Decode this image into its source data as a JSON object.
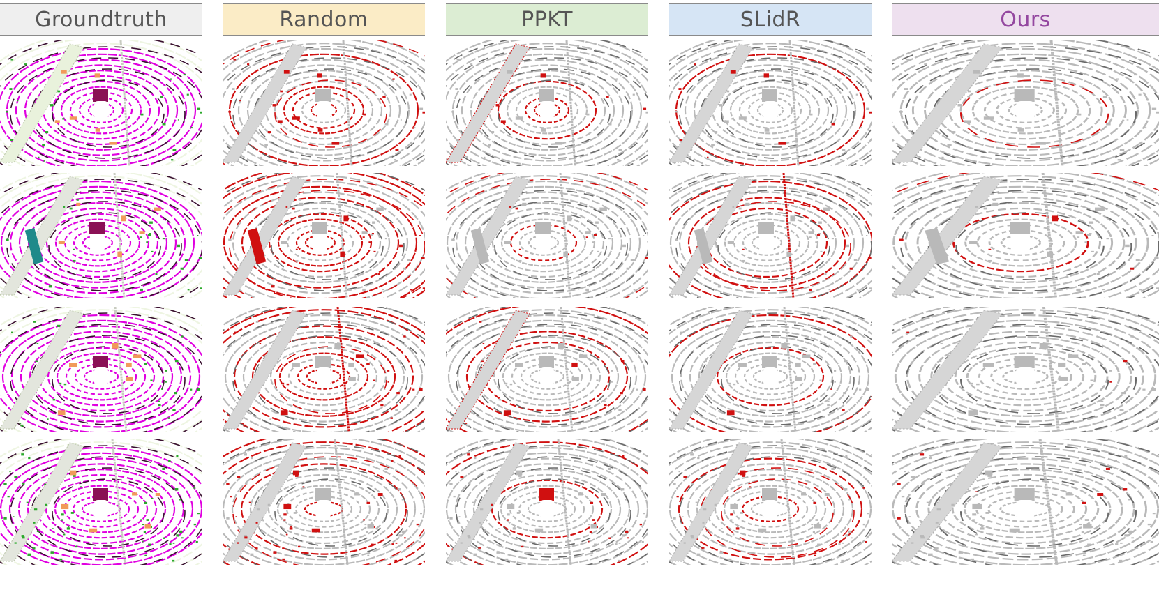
{
  "figure": {
    "columns": [
      {
        "label": "Groundtruth",
        "bg": "#efefef",
        "color": "#555555",
        "mode": "gt"
      },
      {
        "label": "Random",
        "bg": "#fbecc6",
        "color": "#555555",
        "mode": "random"
      },
      {
        "label": "PPKT",
        "bg": "#dcedd3",
        "color": "#555555",
        "mode": "ppkt"
      },
      {
        "label": "SLidR",
        "bg": "#d6e5f5",
        "color": "#555555",
        "mode": "slidr"
      },
      {
        "label": "Ours",
        "bg": "#eee0ef",
        "color": "#9448a0",
        "mode": "ours"
      }
    ],
    "rows": 4,
    "colors": {
      "road": "#e000e0",
      "vegetation": "#2aa82a",
      "sidewalk": "#eef5e2",
      "manmade": "#b0b8a8",
      "car": "#f19a5a",
      "truck": "#8a1155",
      "bus": "#1f8a8a",
      "pedestrian": "#e04aa0",
      "correct": "#b9b9b9",
      "error": "#d01010",
      "curb": "#3a1030"
    }
  }
}
